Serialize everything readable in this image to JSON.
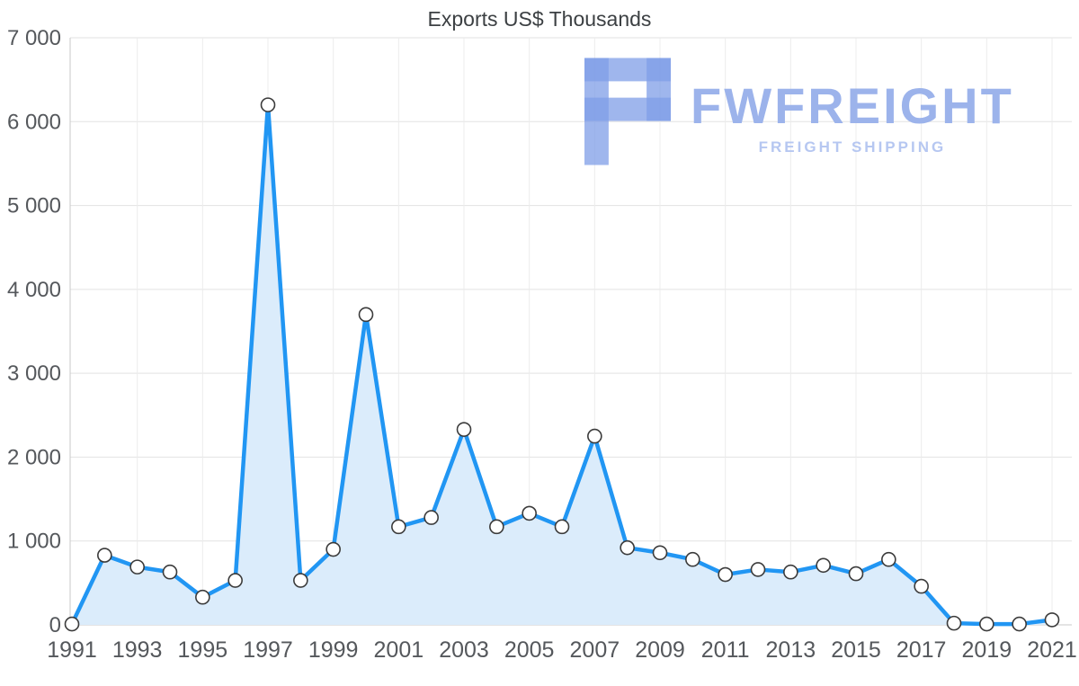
{
  "watermark": {
    "brand": "FWFREIGHT",
    "tagline": "FREIGHT SHIPPING",
    "logo_icon": "fwfreight-f-glyph",
    "color": "#9cb3eb"
  },
  "chart_data": {
    "type": "area",
    "title": "Exports US$ Thousands",
    "xlabel": "",
    "ylabel": "",
    "x": [
      1991,
      1992,
      1993,
      1994,
      1995,
      1996,
      1997,
      1998,
      1999,
      2000,
      2001,
      2002,
      2003,
      2004,
      2005,
      2006,
      2007,
      2008,
      2009,
      2010,
      2011,
      2012,
      2013,
      2014,
      2015,
      2016,
      2017,
      2018,
      2019,
      2020,
      2021
    ],
    "series": [
      {
        "name": "Exports US$ Thousands",
        "values": [
          10,
          830,
          690,
          630,
          330,
          530,
          6200,
          530,
          900,
          3700,
          1170,
          1280,
          2330,
          1170,
          1330,
          1170,
          2250,
          920,
          860,
          780,
          600,
          660,
          630,
          710,
          610,
          780,
          460,
          20,
          10,
          10,
          60
        ]
      }
    ],
    "ylim": [
      0,
      7000
    ],
    "ytick_step": 1000,
    "ytick_labels": [
      "0",
      "1 000",
      "2 000",
      "3 000",
      "4 000",
      "5 000",
      "6 000",
      "7 000"
    ],
    "xtick_labels": [
      "1991",
      "1993",
      "1995",
      "1997",
      "1999",
      "2001",
      "2003",
      "2005",
      "2007",
      "2009",
      "2011",
      "2013",
      "2015",
      "2017",
      "2019",
      "2021"
    ],
    "grid": true,
    "legend": "none",
    "colors": {
      "line": "#2196f3",
      "fill": "#dbecfb",
      "marker_fill": "#ffffff",
      "marker_stroke": "#3b3b3b",
      "grid_h": "#e2e2e2",
      "grid_v": "#ececec",
      "axis": "#c9c9c9",
      "label": "#55585c",
      "title": "#3c4043"
    }
  }
}
